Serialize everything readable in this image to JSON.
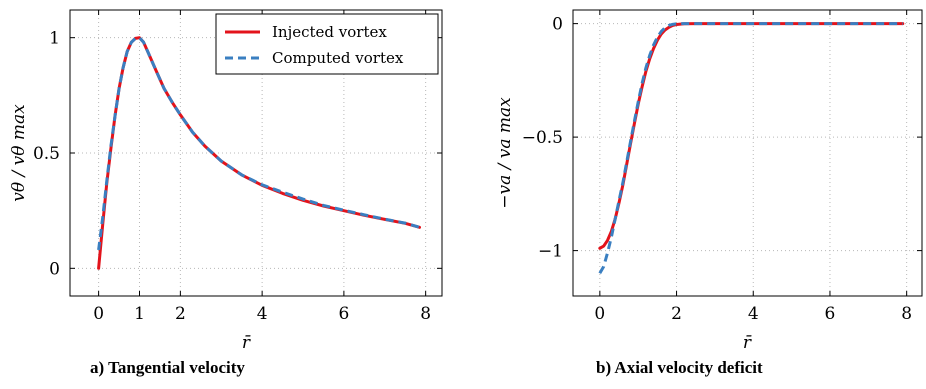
{
  "colors": {
    "injected": "#e3131b",
    "computed": "#3a7fc1"
  },
  "legend": {
    "injected_label": "Injected vortex",
    "computed_label": "Computed vortex"
  },
  "captions": {
    "a": "a) Tangential velocity",
    "b": "b) Axial velocity deficit"
  },
  "chart_data": [
    {
      "type": "line",
      "title": "a) Tangential velocity",
      "xlabel": "r̄",
      "ylabel": "vθ / vθ max",
      "xlim": [
        -0.7,
        8.4
      ],
      "ylim": [
        -0.12,
        1.12
      ],
      "xticks": [
        0,
        1,
        2,
        4,
        6,
        8
      ],
      "yticks": [
        0,
        0.5,
        1
      ],
      "ytick_labels": [
        "0",
        "0.5",
        "1"
      ],
      "grid": true,
      "legend_position": "top-right",
      "series": [
        {
          "name": "Injected vortex",
          "style": "solid",
          "x": [
            0,
            0.1,
            0.2,
            0.3,
            0.4,
            0.5,
            0.6,
            0.7,
            0.8,
            0.9,
            1.0,
            1.1,
            1.2,
            1.4,
            1.6,
            1.8,
            2.0,
            2.3,
            2.6,
            3.0,
            3.5,
            4.0,
            4.5,
            5.0,
            5.5,
            6.0,
            6.5,
            7.0,
            7.5,
            7.85
          ],
          "y": [
            0,
            0.19,
            0.37,
            0.52,
            0.66,
            0.78,
            0.87,
            0.94,
            0.98,
            0.997,
            1.0,
            0.98,
            0.94,
            0.86,
            0.78,
            0.72,
            0.665,
            0.59,
            0.53,
            0.465,
            0.405,
            0.36,
            0.325,
            0.295,
            0.27,
            0.25,
            0.23,
            0.212,
            0.195,
            0.178
          ]
        },
        {
          "name": "Computed vortex",
          "style": "dashed",
          "x": [
            0,
            0.1,
            0.2,
            0.3,
            0.4,
            0.5,
            0.6,
            0.7,
            0.8,
            0.9,
            1.0,
            1.1,
            1.2,
            1.4,
            1.6,
            1.8,
            2.0,
            2.3,
            2.6,
            3.0,
            3.5,
            4.0,
            4.5,
            5.0,
            5.5,
            6.0,
            6.5,
            7.0,
            7.5,
            7.85
          ],
          "y": [
            0.08,
            0.22,
            0.38,
            0.53,
            0.66,
            0.78,
            0.87,
            0.94,
            0.98,
            0.997,
            1.0,
            0.98,
            0.94,
            0.86,
            0.78,
            0.72,
            0.665,
            0.59,
            0.53,
            0.465,
            0.405,
            0.362,
            0.33,
            0.3,
            0.273,
            0.252,
            0.232,
            0.213,
            0.196,
            0.178
          ]
        }
      ]
    },
    {
      "type": "line",
      "title": "b) Axial velocity deficit",
      "xlabel": "r̄",
      "ylabel": "−va / va max",
      "xlim": [
        -0.7,
        8.4
      ],
      "ylim": [
        -1.2,
        0.06
      ],
      "xticks": [
        0,
        2,
        4,
        6,
        8
      ],
      "yticks": [
        0,
        -0.5,
        -1
      ],
      "ytick_labels": [
        "0",
        "−0.5",
        "−1"
      ],
      "grid": true,
      "series": [
        {
          "name": "Injected vortex",
          "style": "solid",
          "x": [
            0,
            0.1,
            0.2,
            0.3,
            0.4,
            0.5,
            0.6,
            0.7,
            0.8,
            0.9,
            1.0,
            1.1,
            1.2,
            1.3,
            1.4,
            1.5,
            1.6,
            1.7,
            1.8,
            1.9,
            2.0,
            2.2,
            2.5,
            3.0,
            4.0,
            5.0,
            6.0,
            7.0,
            7.9
          ],
          "y": [
            -0.99,
            -0.98,
            -0.955,
            -0.915,
            -0.86,
            -0.79,
            -0.71,
            -0.62,
            -0.53,
            -0.44,
            -0.355,
            -0.28,
            -0.21,
            -0.155,
            -0.11,
            -0.073,
            -0.046,
            -0.028,
            -0.016,
            -0.008,
            -0.004,
            -0.001,
            0,
            0,
            0,
            0,
            0,
            0,
            0
          ]
        },
        {
          "name": "Computed vortex",
          "style": "dashed",
          "x": [
            0,
            0.1,
            0.2,
            0.3,
            0.4,
            0.5,
            0.6,
            0.7,
            0.8,
            0.9,
            1.0,
            1.1,
            1.2,
            1.3,
            1.4,
            1.5,
            1.6,
            1.7,
            1.8,
            1.9,
            2.0,
            2.2,
            2.5,
            3.0,
            4.0,
            5.0,
            6.0,
            7.0,
            7.9
          ],
          "y": [
            -1.1,
            -1.07,
            -1.01,
            -0.94,
            -0.86,
            -0.78,
            -0.7,
            -0.61,
            -0.52,
            -0.43,
            -0.345,
            -0.265,
            -0.195,
            -0.14,
            -0.095,
            -0.06,
            -0.035,
            -0.018,
            -0.008,
            -0.003,
            -0.001,
            0,
            0,
            0,
            0,
            0,
            0,
            0,
            0
          ]
        }
      ]
    }
  ]
}
